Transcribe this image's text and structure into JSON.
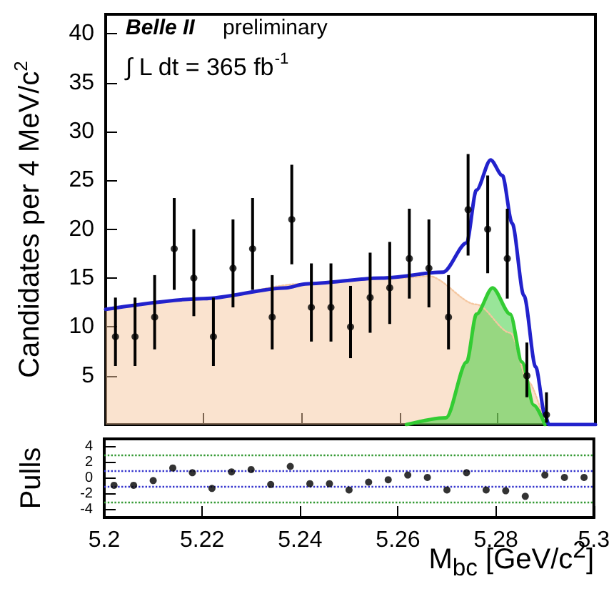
{
  "chart_data": [
    {
      "type": "scatter",
      "ylabel": "Candidates per 4 MeV/c$^{2}$",
      "annotations": [
        "Belle II",
        "preliminary",
        "∫ L dt = 365 fb$^{-1}$"
      ],
      "x": [
        5.202,
        5.206,
        5.21,
        5.214,
        5.218,
        5.222,
        5.226,
        5.23,
        5.234,
        5.238,
        5.242,
        5.246,
        5.25,
        5.254,
        5.258,
        5.262,
        5.266,
        5.27,
        5.274,
        5.278,
        5.282,
        5.286,
        5.29
      ],
      "xlim": [
        5.2,
        5.3
      ],
      "xticks": [
        5.2,
        5.22,
        5.24,
        5.26,
        5.28,
        5.3
      ],
      "ylim": [
        0,
        42
      ],
      "yticks": [
        5,
        10,
        15,
        20,
        25,
        30,
        35,
        40
      ],
      "tick_labels": "y",
      "series": [
        {
          "type": "area",
          "color": "#f5c7a0",
          "line_style": "dotted",
          "x": [
            5.2,
            5.22,
            5.24,
            5.26,
            5.266,
            5.2757,
            5.2826,
            5.2863,
            5.2897
          ],
          "values": [
            11.8,
            12.9,
            14.4,
            15.0,
            15.2,
            12.3,
            9.4,
            4.4,
            0
          ]
        },
        {
          "type": "area",
          "color": "#33cc33",
          "line_style": "solid",
          "x": [
            5.2614,
            5.2695,
            5.2737,
            5.2757,
            5.279,
            5.2826,
            5.285,
            5.2874,
            5.2897
          ],
          "values": [
            0,
            0.7,
            6.4,
            11.3,
            14.0,
            11.3,
            6.4,
            2.0,
            0
          ]
        },
        {
          "type": "line",
          "color": "#2222cc",
          "line_style": "solid",
          "x": [
            5.2,
            5.22,
            5.2369,
            5.2408,
            5.2563,
            5.2689,
            5.2737,
            5.2757,
            5.2786,
            5.281,
            5.283,
            5.2854,
            5.2878,
            5.2897,
            5.2905,
            5.3
          ],
          "values": [
            11.8,
            12.9,
            14.0,
            14.4,
            15.0,
            15.6,
            18.6,
            24.0,
            27.1,
            25.5,
            20.6,
            13.2,
            5.9,
            1.0,
            0,
            0
          ]
        },
        {
          "color": "#000000",
          "marker": "circle",
          "values": [
            9,
            9,
            11,
            18,
            15,
            9,
            16,
            18,
            11,
            21,
            12,
            12,
            10,
            13,
            14,
            17,
            16,
            11,
            22,
            20,
            17,
            5,
            1
          ],
          "errors": [
            [
              6,
              13
            ],
            [
              6,
              13
            ],
            [
              7.7,
              15.3
            ],
            [
              13.8,
              23.2
            ],
            [
              11.1,
              20
            ],
            [
              6,
              13
            ],
            [
              12,
              21
            ],
            [
              13.8,
              23.2
            ],
            [
              7.7,
              15.3
            ],
            [
              16.4,
              26.6
            ],
            [
              8.5,
              16.5
            ],
            [
              8.5,
              16.5
            ],
            [
              6.8,
              14.2
            ],
            [
              9.4,
              17.6
            ],
            [
              10.3,
              18.7
            ],
            [
              12.9,
              22.1
            ],
            [
              12,
              21
            ],
            [
              7.7,
              15.3
            ],
            [
              17.3,
              27.7
            ],
            [
              15.5,
              25.5
            ],
            [
              12.9,
              22.1
            ],
            [
              2.8,
              8.4
            ],
            [
              0.2,
              3.3
            ]
          ]
        }
      ]
    },
    {
      "type": "scatter",
      "xlabel": "M$_{bc}$ [GeV/c$^{2}$]",
      "ylabel": "Pulls",
      "marker": "circle",
      "color": "#000000",
      "x": [
        5.202,
        5.206,
        5.21,
        5.214,
        5.218,
        5.222,
        5.226,
        5.23,
        5.234,
        5.238,
        5.242,
        5.246,
        5.25,
        5.254,
        5.258,
        5.262,
        5.266,
        5.27,
        5.274,
        5.278,
        5.282,
        5.286,
        5.29,
        5.294,
        5.298
      ],
      "values": [
        -0.9,
        -0.9,
        -0.3,
        1.3,
        0.7,
        -1.3,
        0.8,
        1.1,
        -0.8,
        1.5,
        -0.7,
        -0.7,
        -1.5,
        -0.5,
        -0.2,
        0.4,
        0.1,
        -1.5,
        0.7,
        -1.5,
        -1.6,
        -2.3,
        0.4,
        0.1,
        0.1
      ],
      "xlim": [
        5.2,
        5.3
      ],
      "xticks": [
        5.2,
        5.22,
        5.24,
        5.26,
        5.28,
        5.3
      ],
      "ylim": [
        -5,
        5
      ],
      "yticks": [
        -4,
        -2,
        0,
        2,
        4
      ],
      "ref_lines": [
        {
          "axis": "y",
          "value": 3,
          "color": "#339933",
          "line_style": "dotted"
        },
        {
          "axis": "y",
          "value": 1,
          "color": "#3333cc",
          "line_style": "dotted"
        },
        {
          "axis": "y",
          "value": -1,
          "color": "#3333cc",
          "line_style": "dotted"
        },
        {
          "axis": "y",
          "value": -3,
          "color": "#339933",
          "line_style": "dotted"
        }
      ]
    }
  ]
}
